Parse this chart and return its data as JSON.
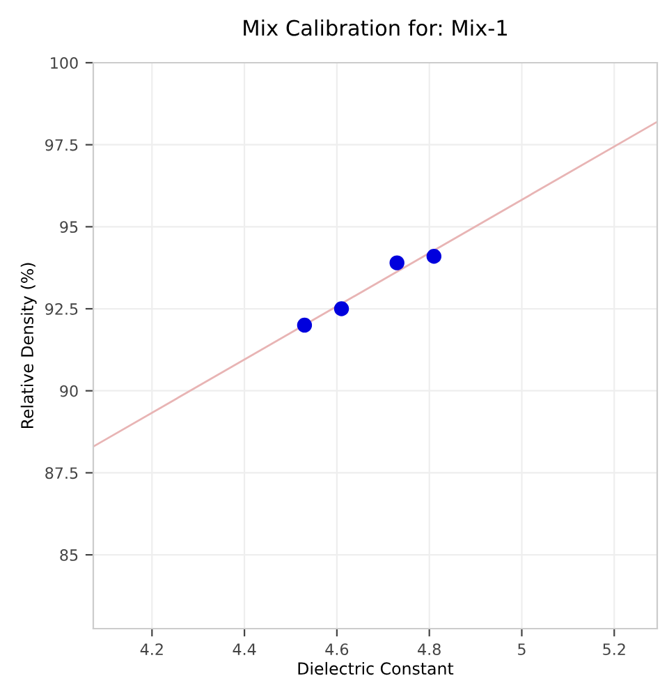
{
  "chart_data": {
    "type": "scatter",
    "title": "Mix Calibration for: Mix-1",
    "xlabel": "Dielectric Constant",
    "ylabel": "Relative Density (%)",
    "series": [
      {
        "type": "line",
        "marker": "none",
        "color": "#e8b4b4",
        "x": [
          4.073,
          5.293
        ],
        "values": [
          88.3,
          98.2
        ]
      },
      {
        "color": "#0000dd",
        "x": [
          4.53,
          4.61,
          4.73,
          4.81
        ],
        "values": [
          92.0,
          92.5,
          93.9,
          94.1
        ]
      }
    ],
    "xlim": [
      4.073,
      5.293
    ],
    "ylim": [
      82.75,
      100
    ],
    "xticks": [
      4.2,
      4.4,
      4.6,
      4.8,
      5,
      5.2
    ],
    "yticks": [
      85,
      87.5,
      90,
      92.5,
      95,
      97.5,
      100
    ],
    "grid": true,
    "marker": "circle"
  }
}
